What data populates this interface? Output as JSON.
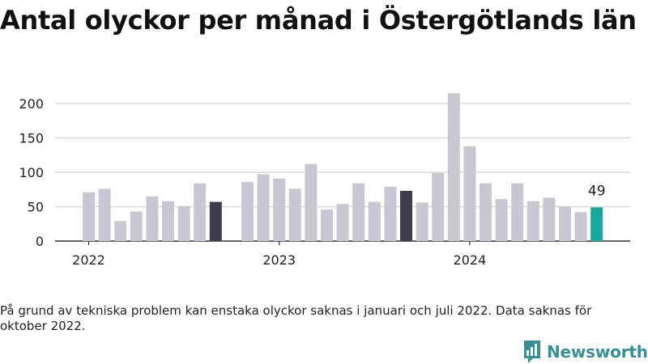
{
  "title": "Antal olyckor per månad i Östergötlands län",
  "footnote": "På grund av tekniska problem kan enstaka olyckor saknas i januari och juli 2022. Data saknas för oktober 2022.",
  "brand": {
    "name": "Newsworthy",
    "icon": "bar-chart-logo-icon",
    "color": "#3a8f93"
  },
  "colors": {
    "bar": "#c9c7d1",
    "september": "#3f3d4b",
    "latest": "#1aa79d",
    "grid": "#d9d9d9",
    "axis": "#333333"
  },
  "chart_data": {
    "type": "bar",
    "title": "Antal olyckor per månad i Östergötlands län",
    "xlabel": "",
    "ylabel": "",
    "ylim": [
      0,
      220
    ],
    "yticks": [
      0,
      50,
      100,
      150,
      200
    ],
    "xticks": [
      "2022",
      "2023",
      "2024"
    ],
    "grid": true,
    "categories": [
      "2022-01",
      "2022-02",
      "2022-03",
      "2022-04",
      "2022-05",
      "2022-06",
      "2022-07",
      "2022-08",
      "2022-09",
      "2022-10",
      "2022-11",
      "2022-12",
      "2023-01",
      "2023-02",
      "2023-03",
      "2023-04",
      "2023-05",
      "2023-06",
      "2023-07",
      "2023-08",
      "2023-09",
      "2023-10",
      "2023-11",
      "2023-12",
      "2024-01",
      "2024-02",
      "2024-03",
      "2024-04",
      "2024-05",
      "2024-06",
      "2024-07",
      "2024-08",
      "2024-09"
    ],
    "values": [
      71,
      76,
      29,
      43,
      65,
      58,
      51,
      84,
      57,
      null,
      86,
      97,
      91,
      76,
      112,
      46,
      54,
      84,
      57,
      79,
      73,
      56,
      99,
      215,
      138,
      84,
      61,
      84,
      58,
      63,
      50,
      42,
      49
    ],
    "highlight": {
      "dark": [
        "2022-09",
        "2023-09"
      ],
      "accent": [
        "2024-09"
      ]
    },
    "annotations": [
      {
        "x": "2024-09",
        "text": "49"
      }
    ]
  }
}
